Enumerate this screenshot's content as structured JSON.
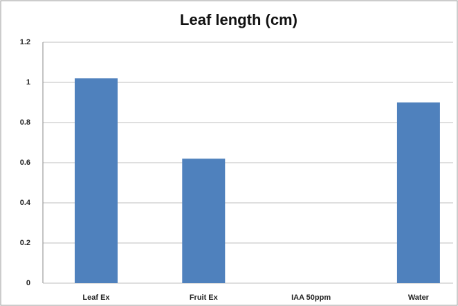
{
  "chart_data": {
    "type": "bar",
    "title": "Leaf length (cm)",
    "categories": [
      "Leaf Ex",
      "Fruit Ex",
      "IAA 50ppm",
      "Water"
    ],
    "values": [
      1.02,
      0.62,
      0,
      0.9
    ],
    "color": "#4f81bd",
    "ylim": [
      0,
      1.2
    ],
    "yticks": [
      0,
      0.2,
      0.4,
      0.6,
      0.8,
      1,
      1.2
    ],
    "grid": true
  }
}
